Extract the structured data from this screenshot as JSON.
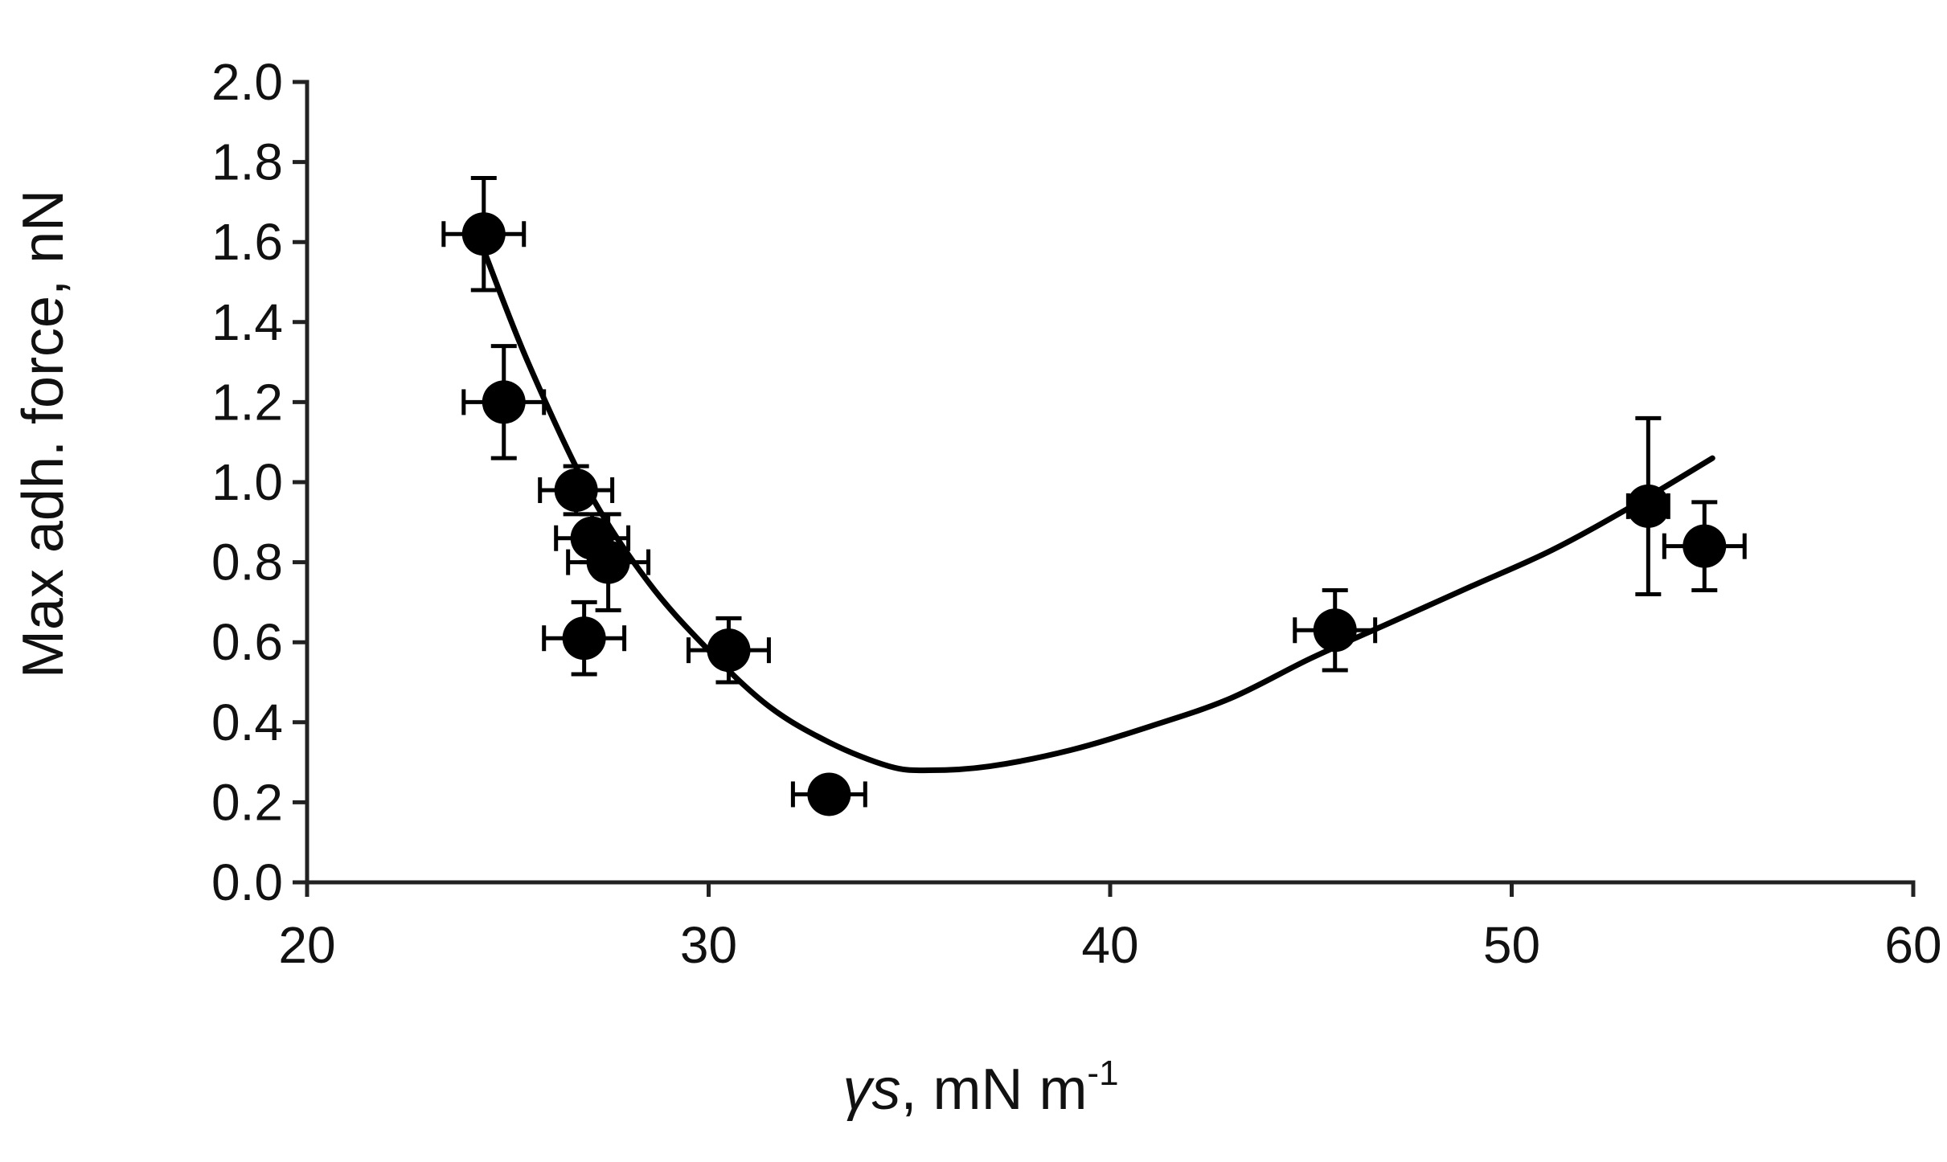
{
  "chart_data": {
    "type": "scatter",
    "xlabel_symbol": "γs",
    "xlabel_rest": ", mN m",
    "xlabel_sup": "-1",
    "ylabel": "Max adh. force, nN",
    "xlim": [
      20,
      60
    ],
    "ylim": [
      0.0,
      2.0
    ],
    "xticks": [
      "20",
      "30",
      "40",
      "50",
      "60"
    ],
    "yticks": [
      "0.0",
      "0.2",
      "0.4",
      "0.6",
      "0.8",
      "1.0",
      "1.2",
      "1.4",
      "1.6",
      "1.8",
      "2.0"
    ],
    "grid": false,
    "colors": {
      "marker": "#000000",
      "line": "#000000",
      "axis": "#222222"
    },
    "points": [
      {
        "x": 24.4,
        "y": 1.62,
        "xerr": 1.0,
        "yerr": 0.14
      },
      {
        "x": 24.9,
        "y": 1.2,
        "xerr": 1.0,
        "yerr": 0.14
      },
      {
        "x": 26.7,
        "y": 0.98,
        "xerr": 0.9,
        "yerr": 0.06
      },
      {
        "x": 27.1,
        "y": 0.86,
        "xerr": 0.9,
        "yerr": 0.06
      },
      {
        "x": 27.5,
        "y": 0.8,
        "xerr": 1.0,
        "yerr": 0.12
      },
      {
        "x": 26.9,
        "y": 0.61,
        "xerr": 1.0,
        "yerr": 0.09
      },
      {
        "x": 30.5,
        "y": 0.58,
        "xerr": 1.0,
        "yerr": 0.08
      },
      {
        "x": 33.0,
        "y": 0.22,
        "xerr": 0.9,
        "yerr": 0.02
      },
      {
        "x": 45.6,
        "y": 0.63,
        "xerr": 1.0,
        "yerr": 0.1
      },
      {
        "x": 53.4,
        "y": 0.94,
        "xerr": 0.5,
        "yerr": 0.22
      },
      {
        "x": 54.8,
        "y": 0.84,
        "xerr": 1.0,
        "yerr": 0.11
      }
    ],
    "fit_curve": {
      "x": [
        24.4,
        25.5,
        27.0,
        28.5,
        30.0,
        31.5,
        33.0,
        34.5,
        35.5,
        37.0,
        39.0,
        41.0,
        43.0,
        45.0,
        47.0,
        49.0,
        51.0,
        53.0,
        55.0
      ],
      "y": [
        1.58,
        1.3,
        0.98,
        0.75,
        0.58,
        0.44,
        0.35,
        0.29,
        0.28,
        0.29,
        0.33,
        0.39,
        0.46,
        0.56,
        0.65,
        0.74,
        0.83,
        0.94,
        1.06
      ]
    }
  }
}
